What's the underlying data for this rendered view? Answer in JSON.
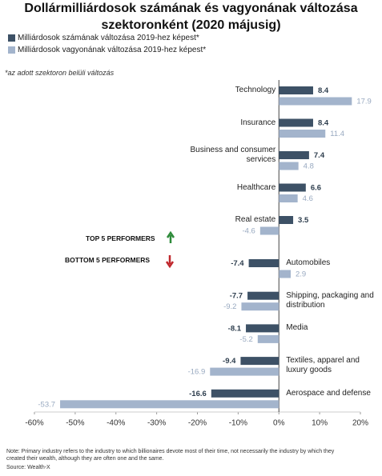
{
  "chart_data": {
    "type": "bar",
    "orientation": "horizontal",
    "title": "Dollármilliárdosok számának és vagyonának változása szektoronként (2020 májusig)",
    "footnote": "*az adott szektoron belüli változás",
    "categories": [
      "Technology",
      "Insurance",
      "Business and consumer services",
      "Healthcare",
      "Real estate",
      "Automobiles",
      "Shipping, packaging and distribution",
      "Media",
      "Textiles, apparel and luxury goods",
      "Aerospace and defense"
    ],
    "series": [
      {
        "name": "Milliárdosok számának változása 2019-hez képest*",
        "color": "#3d5166",
        "values": [
          8.4,
          8.4,
          7.4,
          6.6,
          3.5,
          -7.4,
          -7.7,
          -8.1,
          -9.4,
          -16.6
        ]
      },
      {
        "name": "Milliárdosok vagyonának változása 2019-hez képest*",
        "color": "#a3b4cc",
        "values": [
          17.9,
          11.4,
          4.8,
          4.6,
          -4.6,
          2.9,
          -9.2,
          -5.2,
          -16.9,
          -53.7
        ]
      }
    ],
    "xlim": [
      -60,
      20
    ],
    "xticks": [
      {
        "value": -60,
        "label": "-60%"
      },
      {
        "value": -50,
        "label": "-50%"
      },
      {
        "value": -40,
        "label": "-40%"
      },
      {
        "value": -30,
        "label": "-30%"
      },
      {
        "value": -20,
        "label": "-20%"
      },
      {
        "value": -10,
        "label": "-10%"
      },
      {
        "value": 0,
        "label": "0%"
      },
      {
        "value": 10,
        "label": "10%"
      },
      {
        "value": 20,
        "label": "20%"
      }
    ],
    "annotations": [
      "TOP 5 PERFORMERS",
      "BOTTOM 5 PERFORMERS"
    ],
    "note": "Note: Primary industry refers to the industry to which billionaires devote most of their time, not necessarily the industry by which they created their wealth, although they are often one and the same.",
    "source": "Source: Wealth-X"
  }
}
